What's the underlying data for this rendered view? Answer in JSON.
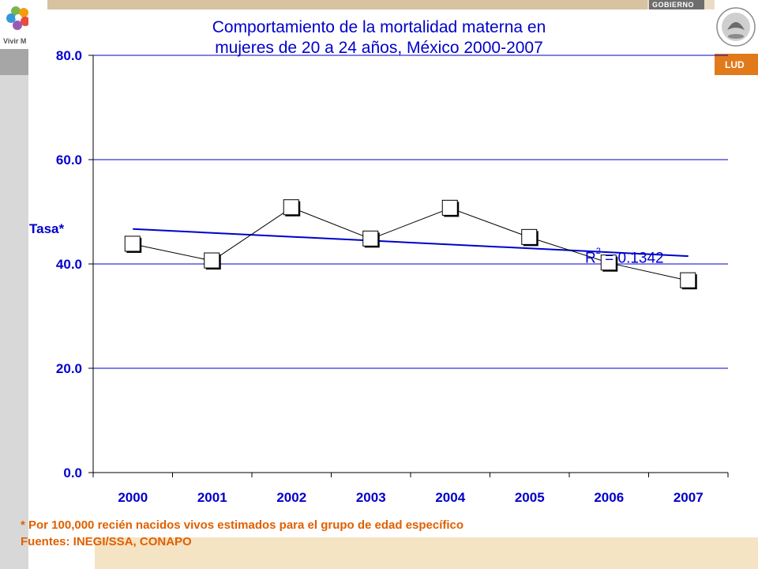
{
  "branding": {
    "left_logo_text": "Vivir M",
    "gov_text": "GOBIERNO",
    "salud_text": "LUD",
    "colors": {
      "accent_orange": "#e07a1b",
      "brand_blue": "#0000cc"
    }
  },
  "chart_data": {
    "type": "line",
    "title_line1": "Comportamiento de la mortalidad materna en",
    "title_line2": "mujeres de 20 a 24 años, México 2000-2007",
    "xlabel": "",
    "ylabel": "Tasa*",
    "categories": [
      "2000",
      "2001",
      "2002",
      "2003",
      "2004",
      "2005",
      "2006",
      "2007"
    ],
    "series": [
      {
        "name": "Tasa",
        "values": [
          43.8,
          40.6,
          50.8,
          44.8,
          50.7,
          45.1,
          40.2,
          36.8
        ]
      }
    ],
    "trendline": {
      "start": 46.7,
      "end": 41.5
    },
    "r2_label": "R",
    "r2_sup": "2",
    "r2_value": " = 0.1342",
    "ylim": [
      0,
      80
    ],
    "yticks": [
      "0.0",
      "20.0",
      "40.0",
      "60.0",
      "80.0"
    ],
    "grid": true
  },
  "footnote": {
    "line1": "* Por 100,000 recién nacidos vivos estimados para el grupo de edad específico",
    "line2": "Fuentes: INEGI/SSA, CONAPO"
  }
}
